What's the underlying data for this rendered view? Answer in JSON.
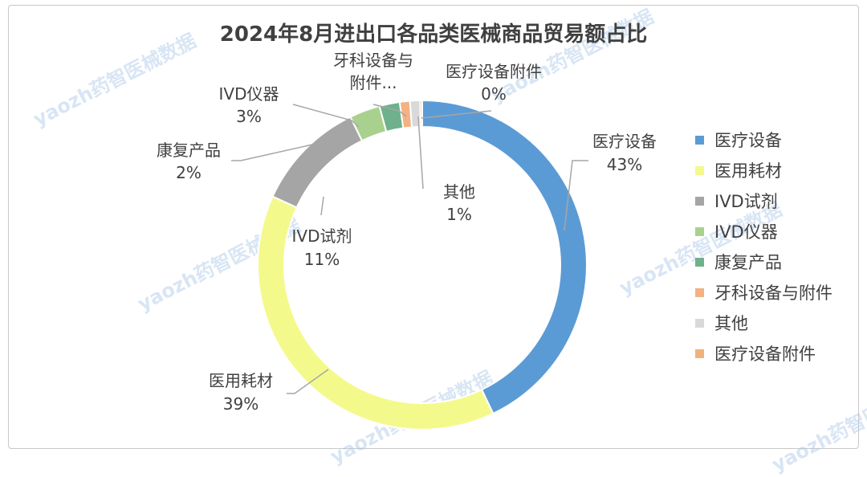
{
  "chart_data": {
    "type": "donut",
    "title": "2024年8月进出口各品类医械商品贸易额占比",
    "slices": [
      {
        "name": "医疗设备",
        "value": 43,
        "label": "43%",
        "color": "#5b9bd5"
      },
      {
        "name": "医用耗材",
        "value": 39,
        "label": "39%",
        "color": "#f4f98c"
      },
      {
        "name": "IVD试剂",
        "value": 11,
        "label": "11%",
        "color": "#a5a5a5"
      },
      {
        "name": "IVD仪器",
        "value": 3,
        "label": "3%",
        "color": "#a9d18e"
      },
      {
        "name": "康复产品",
        "value": 2,
        "label": "2%",
        "color": "#6fb18c"
      },
      {
        "name": "牙科设备与附件",
        "value": 1,
        "label": "",
        "color": "#f4b183"
      },
      {
        "name": "其他",
        "value": 1,
        "label": "1%",
        "color": "#d9d9d9"
      },
      {
        "name": "医疗设备附件",
        "value": 0.2,
        "label": "0%",
        "color": "#f0b27a"
      }
    ],
    "callout_labels": {
      "dental_line1": "牙科设备与",
      "dental_line2": "附件..."
    },
    "legend": [
      "医疗设备",
      "医用耗材",
      "IVD试剂",
      "IVD仪器",
      "康复产品",
      "牙科设备与附件",
      "其他",
      "医疗设备附件"
    ],
    "legend_position": "right"
  },
  "watermark": "yaozh药智医械数据"
}
